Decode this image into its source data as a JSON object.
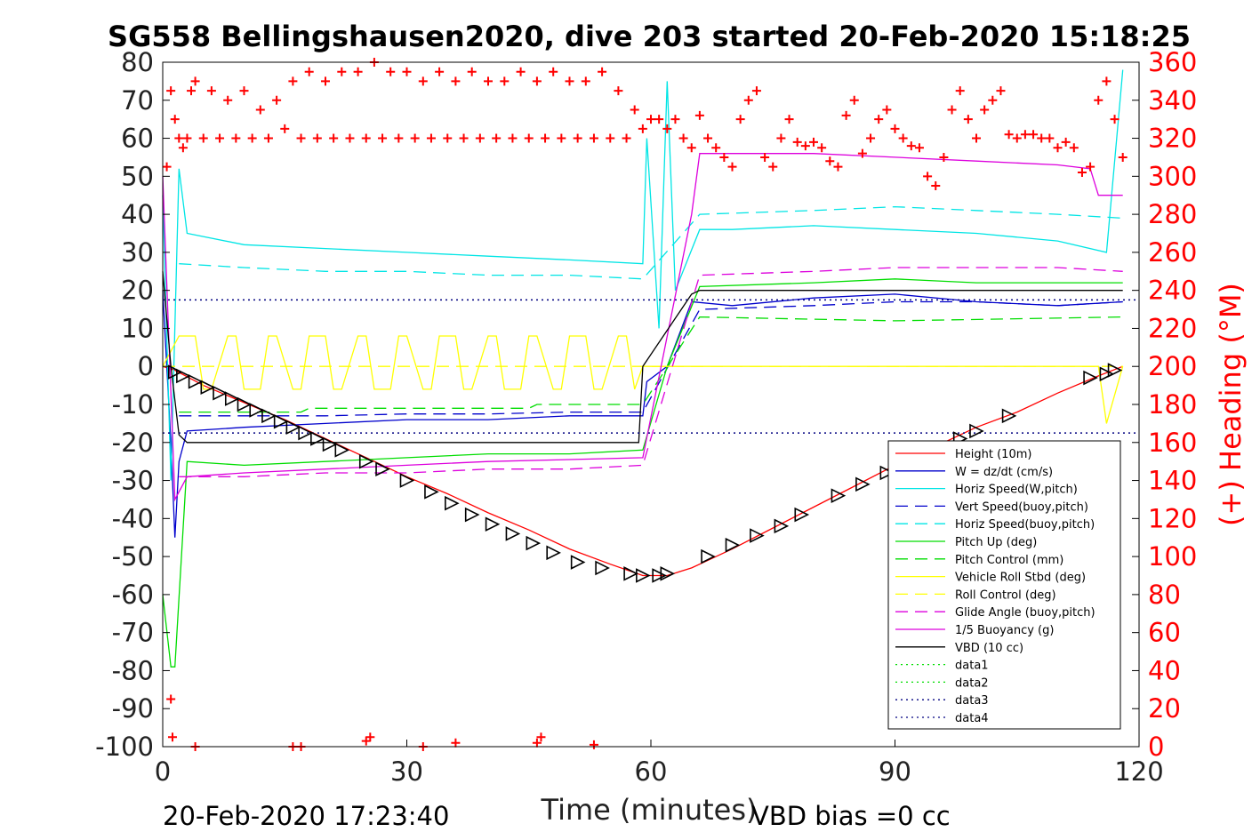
{
  "chart_data": {
    "type": "line",
    "title": "SG558 Bellingshausen2020, dive 203 started 20-Feb-2020 15:18:25",
    "xlabel": "Time (minutes)",
    "ylabel_right": "(+) Heading (°M)",
    "xlim": [
      0,
      120
    ],
    "ylim": [
      -100,
      80
    ],
    "ylim_right": [
      0,
      360
    ],
    "x_ticks": [
      "0",
      "30",
      "60",
      "90",
      "120"
    ],
    "y_ticks": [
      "80",
      "70",
      "60",
      "50",
      "40",
      "30",
      "20",
      "10",
      "0",
      "-10",
      "-20",
      "-30",
      "-40",
      "-50",
      "-60",
      "-70",
      "-80",
      "-90",
      "-100"
    ],
    "y_ticks_right": [
      "360",
      "340",
      "320",
      "300",
      "280",
      "260",
      "240",
      "220",
      "200",
      "180",
      "160",
      "140",
      "120",
      "100",
      "80",
      "60",
      "40",
      "20",
      "0"
    ],
    "grid": false,
    "legend_position": "bottom-right",
    "footer_left": "20-Feb-2020 17:23:40",
    "footer_right": "VBD bias =0 cc",
    "colors": {
      "red": "#ff0000",
      "blue": "#0000cc",
      "cyan": "#00e5e5",
      "green": "#00dd00",
      "yellow": "#ffff00",
      "magenta": "#dd00dd",
      "black": "#000000",
      "navy": "#000080"
    },
    "series": [
      {
        "name": "Height (10m)",
        "color": "#ff0000",
        "style": "solid",
        "x": [
          0,
          1.5,
          5,
          10,
          15,
          20,
          25,
          30,
          35,
          40,
          45,
          50,
          55,
          59,
          62,
          65,
          70,
          75,
          80,
          85,
          90,
          95,
          100,
          105,
          110,
          115,
          118
        ],
        "y": [
          0,
          -1,
          -5,
          -9.5,
          -14,
          -19,
          -24,
          -29,
          -33.5,
          -38.5,
          -43,
          -48,
          -52,
          -55,
          -55,
          -53,
          -48,
          -42.5,
          -37,
          -31.5,
          -26,
          -21,
          -16,
          -12,
          -7,
          -2.5,
          0
        ]
      },
      {
        "name": "W = dz/dt (cm/s)",
        "color": "#0000cc",
        "style": "solid",
        "x": [
          0,
          1,
          1.5,
          2,
          3,
          10,
          20,
          30,
          40,
          50,
          59,
          59.5,
          62,
          65,
          70,
          80,
          90,
          100,
          110,
          118
        ],
        "y": [
          20,
          -20,
          -45,
          -25,
          -17,
          -16,
          -15,
          -14,
          -14,
          -13,
          -13,
          -4,
          0,
          17,
          16,
          18,
          19,
          17,
          16,
          17
        ]
      },
      {
        "name": "Horiz Speed(W,pitch)",
        "color": "#00e5e5",
        "style": "solid",
        "x": [
          0,
          1,
          2,
          3,
          10,
          20,
          30,
          40,
          50,
          59,
          59.5,
          61,
          62,
          63,
          66,
          70,
          80,
          90,
          100,
          110,
          116,
          118
        ],
        "y": [
          45,
          -30,
          52,
          35,
          32,
          31,
          30,
          29,
          28,
          27,
          60,
          10,
          75,
          20,
          36,
          36,
          37,
          36,
          35,
          33,
          30,
          78
        ]
      },
      {
        "name": "Vert Speed(buoy,pitch)",
        "color": "#0000cc",
        "style": "dash",
        "x": [
          2,
          10,
          20,
          30,
          40,
          50,
          59,
          66,
          80,
          90,
          100,
          110,
          118
        ],
        "y": [
          -13,
          -13,
          -13,
          -12.5,
          -12.5,
          -12,
          -12,
          15,
          16,
          17,
          17,
          16,
          17
        ]
      },
      {
        "name": "Horiz Speed(buoy,pitch)",
        "color": "#00e5e5",
        "style": "dash",
        "x": [
          2,
          10,
          20,
          30,
          40,
          50,
          59,
          66,
          80,
          90,
          100,
          110,
          118
        ],
        "y": [
          27,
          26,
          25,
          25,
          24,
          24,
          23,
          40,
          41,
          42,
          41,
          40,
          39
        ]
      },
      {
        "name": "Pitch Up (deg)",
        "color": "#00dd00",
        "style": "solid",
        "x": [
          0,
          1,
          1.5,
          3,
          10,
          20,
          30,
          40,
          50,
          59,
          62,
          66,
          80,
          90,
          100,
          110,
          118
        ],
        "y": [
          -60,
          -79,
          -79,
          -25,
          -26,
          -25,
          -24,
          -23,
          -23,
          -22,
          0,
          21,
          22,
          23,
          22,
          22,
          22
        ]
      },
      {
        "name": "Pitch Control (mm)",
        "color": "#00dd00",
        "style": "dash",
        "x": [
          2,
          17,
          18,
          45,
          46,
          59,
          66,
          90,
          118
        ],
        "y": [
          -12,
          -12,
          -11,
          -11,
          -10,
          -10,
          13,
          12,
          13
        ]
      },
      {
        "name": "Vehicle Roll Stbd (deg)",
        "color": "#ffff00",
        "style": "solid",
        "x": [
          0,
          2,
          4,
          5,
          6,
          8,
          9,
          10,
          12,
          13,
          14,
          16,
          17,
          18,
          20,
          21,
          22,
          24,
          25,
          26,
          28,
          29,
          30,
          32,
          33,
          34,
          36,
          37,
          38,
          40,
          41,
          42,
          44,
          45,
          46,
          48,
          49,
          50,
          52,
          53,
          54,
          56,
          57,
          58,
          59,
          65,
          70,
          75,
          80,
          85,
          90,
          95,
          100,
          105,
          110,
          115,
          116,
          118
        ],
        "y": [
          0,
          8,
          8,
          -6,
          -6,
          8,
          8,
          -6,
          -6,
          8,
          8,
          -6,
          -6,
          8,
          8,
          -6,
          -6,
          8,
          8,
          -6,
          -6,
          8,
          8,
          -6,
          -6,
          8,
          8,
          -6,
          -6,
          8,
          8,
          -6,
          -6,
          8,
          8,
          -6,
          -6,
          8,
          8,
          -6,
          -6,
          8,
          8,
          -6,
          0,
          0,
          0,
          0,
          0,
          0,
          0,
          0,
          0,
          0,
          0,
          0,
          -15,
          0
        ]
      },
      {
        "name": "Roll Control (deg)",
        "color": "#ffff00",
        "style": "dash",
        "x": [
          0,
          2,
          10,
          20,
          30,
          40,
          50,
          59,
          66,
          80,
          90,
          100,
          110,
          118
        ],
        "y": [
          0,
          0,
          0,
          0,
          0,
          0,
          0,
          0,
          0,
          0,
          0,
          0,
          0,
          0
        ]
      },
      {
        "name": "Glide Angle (buoy,pitch)",
        "color": "#dd00dd",
        "style": "dash",
        "x": [
          2,
          10,
          20,
          30,
          40,
          50,
          59,
          66,
          80,
          90,
          100,
          110,
          118
        ],
        "y": [
          -29,
          -29,
          -28,
          -28,
          -27,
          -27,
          -26,
          24,
          25,
          26,
          26,
          26,
          25
        ]
      },
      {
        "name": "1/5 Buoyancy (g)",
        "color": "#dd00dd",
        "style": "solid",
        "x": [
          0,
          1.5,
          3,
          10,
          20,
          30,
          40,
          50,
          59,
          65,
          66,
          80,
          90,
          100,
          110,
          114,
          115,
          118
        ],
        "y": [
          50,
          -35,
          -29,
          -28,
          -27,
          -26,
          -25,
          -24.5,
          -24,
          40,
          56,
          56,
          55,
          54,
          53,
          52,
          45,
          45
        ]
      },
      {
        "name": "VBD (10 cc)",
        "color": "#000000",
        "style": "solid",
        "x": [
          0,
          1,
          2,
          3,
          58.5,
          59,
          65,
          66,
          118
        ],
        "y": [
          25,
          0,
          -18,
          -20,
          -20,
          0,
          19,
          20,
          20
        ]
      },
      {
        "name": "data1",
        "color": "#00dd00",
        "style": "dot",
        "x": [],
        "y": []
      },
      {
        "name": "data2",
        "color": "#00dd00",
        "style": "dot",
        "x": [],
        "y": []
      },
      {
        "name": "data3",
        "color": "#000080",
        "style": "dot",
        "x": [
          0,
          120
        ],
        "y": [
          17.5,
          17.5
        ]
      },
      {
        "name": "data4",
        "color": "#000080",
        "style": "dot",
        "x": [
          0,
          120
        ],
        "y": [
          -17.5,
          -17.5
        ]
      }
    ],
    "heading_series": {
      "name": "Heading",
      "color": "#ff0000",
      "marker": "+",
      "axis": "right",
      "x": [
        0.5,
        1,
        1.5,
        2,
        2.5,
        3,
        3.5,
        4,
        5,
        6,
        7,
        8,
        9,
        10,
        11,
        12,
        13,
        14,
        15,
        16,
        17,
        18,
        19,
        20,
        21,
        22,
        23,
        24,
        25,
        26,
        27,
        28,
        29,
        30,
        31,
        32,
        33,
        34,
        35,
        36,
        37,
        38,
        39,
        40,
        41,
        42,
        43,
        44,
        45,
        46,
        47,
        48,
        49,
        50,
        51,
        52,
        53,
        54,
        55,
        56,
        57,
        58,
        59,
        60,
        61,
        62,
        63,
        64,
        65,
        66,
        67,
        68,
        69,
        70,
        71,
        72,
        73,
        74,
        75,
        76,
        77,
        78,
        79,
        80,
        81,
        82,
        83,
        84,
        85,
        86,
        87,
        88,
        89,
        90,
        91,
        92,
        93,
        94,
        95,
        96,
        97,
        98,
        99,
        100,
        101,
        102,
        103,
        104,
        105,
        106,
        107,
        108,
        109,
        110,
        111,
        112,
        113,
        114,
        115,
        116,
        117,
        118
      ],
      "y": [
        305,
        345,
        330,
        320,
        315,
        320,
        345,
        350,
        320,
        345,
        320,
        340,
        320,
        345,
        320,
        335,
        320,
        340,
        325,
        350,
        320,
        355,
        320,
        350,
        320,
        355,
        320,
        355,
        320,
        360,
        320,
        355,
        320,
        355,
        320,
        350,
        320,
        355,
        320,
        350,
        320,
        355,
        320,
        350,
        320,
        350,
        320,
        355,
        320,
        350,
        320,
        355,
        320,
        350,
        320,
        350,
        320,
        355,
        320,
        345,
        320,
        335,
        325,
        330,
        330,
        325,
        330,
        320,
        315,
        332,
        320,
        315,
        310,
        305,
        330,
        340,
        345,
        310,
        305,
        320,
        330,
        318,
        316,
        318,
        315,
        308,
        305,
        332,
        340,
        312,
        320,
        330,
        335,
        325,
        320,
        316,
        315,
        300,
        295,
        310,
        335,
        345,
        330,
        320,
        335,
        340,
        345,
        322,
        320,
        322,
        322,
        320,
        320,
        315,
        318,
        315,
        302,
        305,
        340,
        350,
        330,
        310
      ],
      "outliers_x": [
        1,
        1.2,
        4,
        16,
        17,
        25,
        25.5,
        32,
        36,
        46,
        46.5,
        53
      ],
      "outliers_y": [
        25,
        5,
        0,
        0,
        0,
        3,
        5,
        0,
        2,
        2,
        5,
        1
      ]
    },
    "depth_markers": {
      "name": "dive track markers",
      "color": "#000000",
      "x": [
        1.5,
        2.5,
        4,
        5.5,
        7,
        8.5,
        10,
        11.5,
        13,
        14.5,
        16,
        17.5,
        19,
        20.5,
        22,
        25,
        27,
        30,
        33,
        35.5,
        38,
        40.5,
        43,
        45.5,
        48,
        51,
        54,
        57.5,
        59,
        61,
        62,
        67,
        70,
        73,
        76,
        78.5,
        83,
        86,
        89,
        92,
        95,
        98,
        100,
        104,
        114,
        116,
        117
      ],
      "y": [
        -1.5,
        -2.5,
        -4,
        -5.5,
        -7,
        -8.5,
        -10,
        -11.5,
        -13,
        -14.5,
        -16,
        -17.5,
        -19,
        -20.5,
        -22,
        -25,
        -27,
        -30,
        -33,
        -36,
        -39,
        -41.5,
        -44,
        -46.5,
        -49,
        -51.5,
        -53,
        -54.5,
        -55,
        -55,
        -54.5,
        -50,
        -47,
        -44.5,
        -42,
        -39,
        -34,
        -31,
        -28,
        -26,
        -22,
        -19,
        -17,
        -13,
        -3,
        -2,
        -1
      ]
    }
  }
}
